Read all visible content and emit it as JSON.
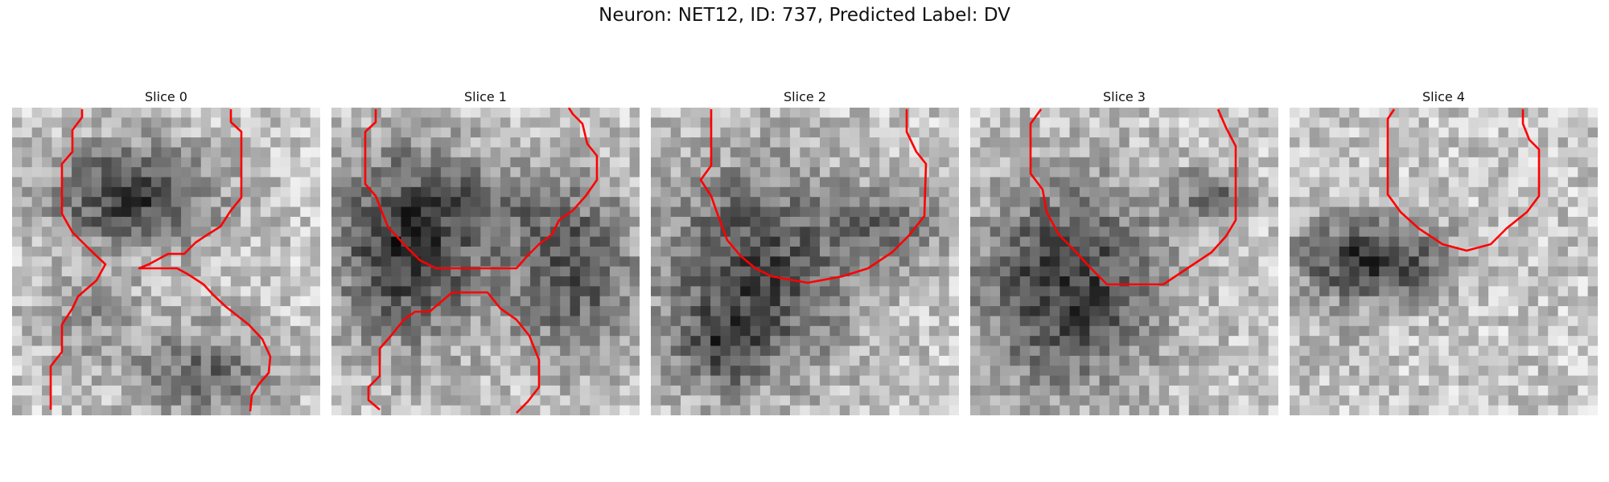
{
  "figure": {
    "title": "Neuron: NET12, ID: 737, Predicted Label: DV"
  },
  "panels": [
    {
      "title": "Slice 0"
    },
    {
      "title": "Slice 1"
    },
    {
      "title": "Slice 2"
    },
    {
      "title": "Slice 3"
    },
    {
      "title": "Slice 4"
    }
  ],
  "colors": {
    "contour": "#ff0000",
    "background": "#ffffff"
  }
}
